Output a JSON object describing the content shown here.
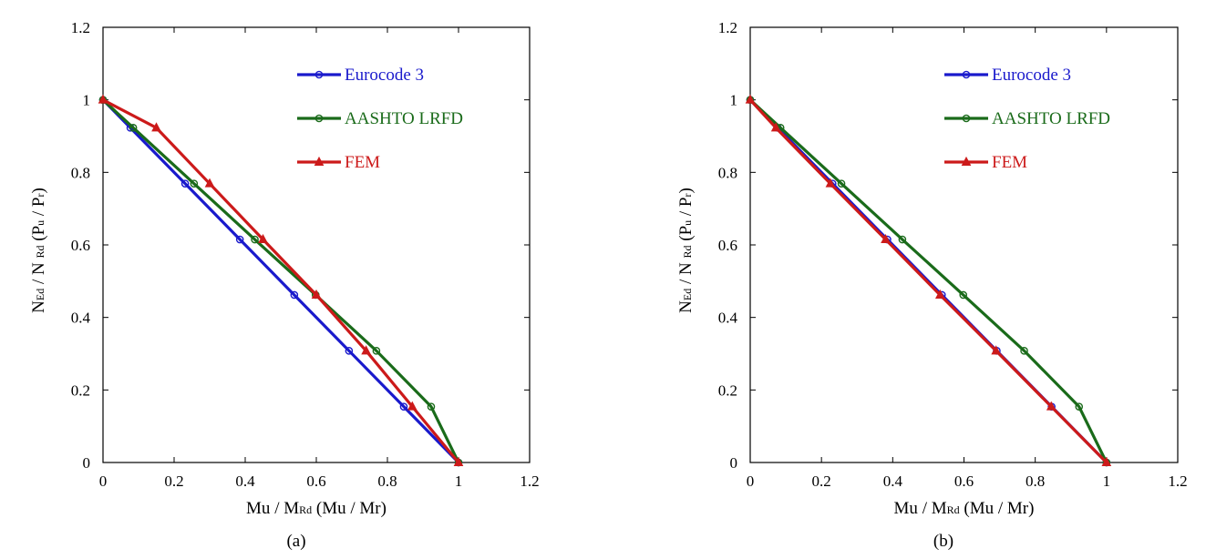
{
  "figure": {
    "panels": [
      "(a)",
      "(b)"
    ]
  },
  "chart_data": [
    {
      "type": "line",
      "caption": "(a)",
      "xlabel": {
        "parts": [
          [
            "Mu",
            ""
          ],
          [
            " / M",
            ""
          ],
          [
            "Rd",
            "sub"
          ],
          [
            " (Mu / Mr)",
            ""
          ]
        ]
      },
      "ylabel": {
        "parts": [
          [
            "N",
            ""
          ],
          [
            "Ed",
            "sub"
          ],
          [
            " / N ",
            ""
          ],
          [
            "Rd",
            "sub"
          ],
          [
            " (P",
            ""
          ],
          [
            "u",
            "sub"
          ],
          [
            " / P",
            ""
          ],
          [
            "r",
            "sub"
          ],
          [
            ")",
            ""
          ]
        ]
      },
      "xlim": [
        0,
        1.2
      ],
      "ylim": [
        0,
        1.2
      ],
      "xticks": [
        0,
        0.2,
        0.4,
        0.6,
        0.8,
        1,
        1.2
      ],
      "yticks": [
        0,
        0.2,
        0.4,
        0.6,
        0.8,
        1,
        1.2
      ],
      "xtick_labels": [
        "0",
        "0.2",
        "0.4",
        "0.6",
        "0.8",
        "1",
        "1.2"
      ],
      "ytick_labels": [
        "0",
        "0.2",
        "0.4",
        "0.6",
        "0.8",
        "1",
        "1.2"
      ],
      "legend_position": "top-right",
      "series": [
        {
          "name": "Eurocode 3",
          "color": "#1a1acc",
          "marker": "circle",
          "x": [
            0,
            0.077,
            0.231,
            0.385,
            0.538,
            0.692,
            0.846,
            1.0
          ],
          "y": [
            1.0,
            0.923,
            0.769,
            0.615,
            0.462,
            0.308,
            0.154,
            0.0
          ]
        },
        {
          "name": "AASHTO LRFD",
          "color": "#1a6b1a",
          "marker": "circle",
          "x": [
            0,
            0.085,
            0.256,
            0.427,
            0.598,
            0.769,
            0.923,
            1.0
          ],
          "y": [
            1.0,
            0.923,
            0.769,
            0.615,
            0.462,
            0.308,
            0.154,
            0.0
          ]
        },
        {
          "name": "FEM",
          "color": "#cc1a1a",
          "marker": "triangle",
          "x": [
            0,
            0.15,
            0.3,
            0.45,
            0.6,
            0.74,
            0.87,
            1.0
          ],
          "y": [
            1.0,
            0.923,
            0.769,
            0.615,
            0.462,
            0.308,
            0.154,
            0.0
          ]
        }
      ]
    },
    {
      "type": "line",
      "caption": "(b)",
      "xlabel": {
        "parts": [
          [
            "Mu",
            ""
          ],
          [
            " / M",
            ""
          ],
          [
            "Rd",
            "sub"
          ],
          [
            " (Mu / Mr)",
            ""
          ]
        ]
      },
      "ylabel": {
        "parts": [
          [
            "N",
            ""
          ],
          [
            "Ed",
            "sub"
          ],
          [
            " / N ",
            ""
          ],
          [
            "Rd",
            "sub"
          ],
          [
            " (P",
            ""
          ],
          [
            "u",
            "sub"
          ],
          [
            " / P",
            ""
          ],
          [
            "r",
            "sub"
          ],
          [
            ")",
            ""
          ]
        ]
      },
      "xlim": [
        0,
        1.2
      ],
      "ylim": [
        0,
        1.2
      ],
      "xticks": [
        0,
        0.2,
        0.4,
        0.6,
        0.8,
        1,
        1.2
      ],
      "yticks": [
        0,
        0.2,
        0.4,
        0.6,
        0.8,
        1,
        1.2
      ],
      "xtick_labels": [
        "0",
        "0.2",
        "0.4",
        "0.6",
        "0.8",
        "1",
        "1.2"
      ],
      "ytick_labels": [
        "0",
        "0.2",
        "0.4",
        "0.6",
        "0.8",
        "1",
        "1.2"
      ],
      "legend_position": "top-right",
      "series": [
        {
          "name": "Eurocode 3",
          "color": "#1a1acc",
          "marker": "circle",
          "x": [
            0,
            0.077,
            0.231,
            0.385,
            0.538,
            0.692,
            0.846,
            1.0
          ],
          "y": [
            1.0,
            0.923,
            0.769,
            0.615,
            0.462,
            0.308,
            0.154,
            0.0
          ]
        },
        {
          "name": "AASHTO LRFD",
          "color": "#1a6b1a",
          "marker": "circle",
          "x": [
            0,
            0.085,
            0.256,
            0.427,
            0.598,
            0.769,
            0.923,
            1.0
          ],
          "y": [
            1.0,
            0.923,
            0.769,
            0.615,
            0.462,
            0.308,
            0.154,
            0.0
          ]
        },
        {
          "name": "FEM",
          "color": "#cc1a1a",
          "marker": "triangle",
          "x": [
            0,
            0.072,
            0.225,
            0.38,
            0.533,
            0.69,
            0.845,
            1.0
          ],
          "y": [
            1.0,
            0.923,
            0.769,
            0.615,
            0.462,
            0.308,
            0.154,
            0.0
          ]
        }
      ]
    }
  ]
}
